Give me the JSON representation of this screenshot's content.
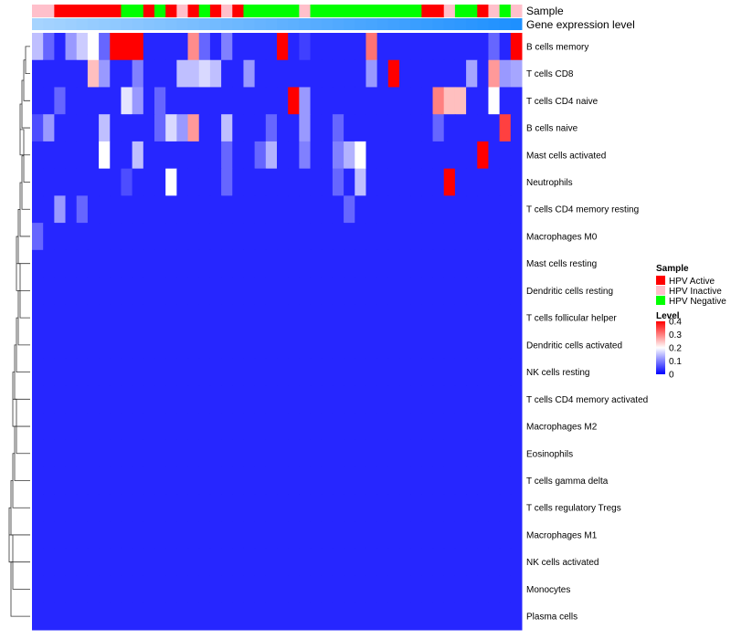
{
  "chart_data": {
    "type": "heatmap",
    "annotation_labels": [
      "Sample",
      "Gene expression level"
    ],
    "rows": [
      "B cells memory",
      "T cells CD8",
      "T cells CD4 naive",
      "B cells naive",
      "Mast cells activated",
      "Neutrophils",
      "T cells CD4 memory resting",
      "Macrophages M0",
      "Mast cells resting",
      "Dendritic cells resting",
      "T cells follicular helper",
      "Dendritic cells activated",
      "NK cells resting",
      "T cells CD4 memory activated",
      "Macrophages M2",
      "Eosinophils",
      "T cells gamma delta",
      "T cells regulatory  Tregs",
      "Macrophages M1",
      "NK cells activated",
      "Monocytes",
      "Plasma cells"
    ],
    "samples": [
      "I",
      "I",
      "A",
      "A",
      "A",
      "A",
      "A",
      "A",
      "N",
      "N",
      "A",
      "N",
      "A",
      "I",
      "A",
      "N",
      "A",
      "I",
      "A",
      "N",
      "N",
      "N",
      "N",
      "N",
      "I",
      "N",
      "N",
      "N",
      "N",
      "N",
      "N",
      "N",
      "N",
      "N",
      "N",
      "A",
      "A",
      "I",
      "N",
      "N",
      "A",
      "I",
      "N",
      "I"
    ],
    "values": [
      [
        0.15,
        0.08,
        0.03,
        0.12,
        0.16,
        0.2,
        0.08,
        0.4,
        0.4,
        0.4,
        0.03,
        0.03,
        0.03,
        0.03,
        0.29,
        0.08,
        0.03,
        0.1,
        0.03,
        0.03,
        0.03,
        0.03,
        0.4,
        0.03,
        0.05,
        0.03,
        0.03,
        0.03,
        0.03,
        0.03,
        0.31,
        0.03,
        0.03,
        0.03,
        0.03,
        0.03,
        0.03,
        0.03,
        0.03,
        0.03,
        0.03,
        0.08,
        0.03,
        0.4
      ],
      [
        0.03,
        0.03,
        0.03,
        0.03,
        0.03,
        0.25,
        0.12,
        0.03,
        0.03,
        0.1,
        0.03,
        0.03,
        0.03,
        0.15,
        0.15,
        0.17,
        0.15,
        0.03,
        0.03,
        0.12,
        0.03,
        0.03,
        0.03,
        0.03,
        0.03,
        0.03,
        0.03,
        0.03,
        0.03,
        0.03,
        0.12,
        0.03,
        0.4,
        0.03,
        0.03,
        0.03,
        0.03,
        0.03,
        0.03,
        0.13,
        0.03,
        0.28,
        0.12,
        0.13
      ],
      [
        0.03,
        0.03,
        0.08,
        0.03,
        0.03,
        0.03,
        0.03,
        0.03,
        0.18,
        0.12,
        0.03,
        0.08,
        0.03,
        0.03,
        0.03,
        0.03,
        0.03,
        0.03,
        0.03,
        0.03,
        0.03,
        0.03,
        0.03,
        0.4,
        0.12,
        0.03,
        0.03,
        0.03,
        0.03,
        0.03,
        0.03,
        0.03,
        0.03,
        0.03,
        0.03,
        0.03,
        0.3,
        0.25,
        0.25,
        0.03,
        0.03,
        0.2,
        0.03,
        0.03
      ],
      [
        0.06,
        0.12,
        0.03,
        0.03,
        0.03,
        0.03,
        0.15,
        0.03,
        0.03,
        0.03,
        0.03,
        0.08,
        0.17,
        0.12,
        0.28,
        0.03,
        0.03,
        0.15,
        0.03,
        0.03,
        0.03,
        0.08,
        0.03,
        0.03,
        0.12,
        0.03,
        0.03,
        0.08,
        0.03,
        0.03,
        0.03,
        0.03,
        0.03,
        0.03,
        0.03,
        0.03,
        0.08,
        0.03,
        0.03,
        0.03,
        0.03,
        0.03,
        0.35,
        0.03
      ],
      [
        0.03,
        0.03,
        0.03,
        0.03,
        0.03,
        0.03,
        0.2,
        0.03,
        0.03,
        0.15,
        0.03,
        0.03,
        0.03,
        0.03,
        0.03,
        0.03,
        0.03,
        0.08,
        0.03,
        0.03,
        0.08,
        0.14,
        0.03,
        0.03,
        0.1,
        0.03,
        0.03,
        0.1,
        0.14,
        0.2,
        0.03,
        0.03,
        0.03,
        0.03,
        0.03,
        0.03,
        0.03,
        0.03,
        0.03,
        0.03,
        0.4,
        0.03,
        0.03,
        0.03
      ],
      [
        0.03,
        0.03,
        0.03,
        0.03,
        0.03,
        0.03,
        0.03,
        0.03,
        0.06,
        0.03,
        0.03,
        0.03,
        0.2,
        0.03,
        0.03,
        0.03,
        0.03,
        0.08,
        0.03,
        0.03,
        0.03,
        0.03,
        0.03,
        0.03,
        0.03,
        0.03,
        0.03,
        0.08,
        0.03,
        0.15,
        0.03,
        0.03,
        0.03,
        0.03,
        0.03,
        0.03,
        0.03,
        0.4,
        0.03,
        0.03,
        0.03,
        0.03,
        0.03,
        0.03
      ],
      [
        0.03,
        0.03,
        0.12,
        0.03,
        0.08,
        0.03,
        0.03,
        0.03,
        0.03,
        0.03,
        0.03,
        0.03,
        0.03,
        0.03,
        0.03,
        0.03,
        0.03,
        0.03,
        0.03,
        0.03,
        0.03,
        0.03,
        0.03,
        0.03,
        0.03,
        0.03,
        0.03,
        0.03,
        0.08,
        0.03,
        0.03,
        0.03,
        0.03,
        0.03,
        0.03,
        0.03,
        0.03,
        0.03,
        0.03,
        0.03,
        0.03,
        0.03,
        0.03,
        0.03
      ],
      [
        0.08,
        0.03,
        0.03,
        0.03,
        0.03,
        0.03,
        0.03,
        0.03,
        0.03,
        0.03,
        0.03,
        0.03,
        0.03,
        0.03,
        0.03,
        0.03,
        0.03,
        0.03,
        0.03,
        0.03,
        0.03,
        0.03,
        0.03,
        0.03,
        0.03,
        0.03,
        0.03,
        0.03,
        0.03,
        0.03,
        0.03,
        0.03,
        0.03,
        0.03,
        0.03,
        0.03,
        0.03,
        0.03,
        0.03,
        0.03,
        0.03,
        0.03,
        0.03,
        0.03
      ],
      [
        0.03,
        0.03,
        0.03,
        0.03,
        0.03,
        0.03,
        0.03,
        0.03,
        0.03,
        0.03,
        0.03,
        0.03,
        0.03,
        0.03,
        0.03,
        0.03,
        0.03,
        0.03,
        0.03,
        0.03,
        0.03,
        0.03,
        0.03,
        0.03,
        0.03,
        0.03,
        0.03,
        0.03,
        0.03,
        0.03,
        0.03,
        0.03,
        0.03,
        0.03,
        0.03,
        0.03,
        0.03,
        0.03,
        0.03,
        0.03,
        0.03,
        0.03,
        0.03,
        0.03
      ],
      [
        0.03,
        0.03,
        0.03,
        0.03,
        0.03,
        0.03,
        0.03,
        0.03,
        0.03,
        0.03,
        0.03,
        0.03,
        0.03,
        0.03,
        0.03,
        0.03,
        0.03,
        0.03,
        0.03,
        0.03,
        0.03,
        0.03,
        0.03,
        0.03,
        0.03,
        0.03,
        0.03,
        0.03,
        0.03,
        0.03,
        0.03,
        0.03,
        0.03,
        0.03,
        0.03,
        0.03,
        0.03,
        0.03,
        0.03,
        0.03,
        0.03,
        0.03,
        0.03,
        0.03
      ],
      [
        0.03,
        0.03,
        0.03,
        0.03,
        0.03,
        0.03,
        0.03,
        0.03,
        0.03,
        0.03,
        0.03,
        0.03,
        0.03,
        0.03,
        0.03,
        0.03,
        0.03,
        0.03,
        0.03,
        0.03,
        0.03,
        0.03,
        0.03,
        0.03,
        0.03,
        0.03,
        0.03,
        0.03,
        0.03,
        0.03,
        0.03,
        0.03,
        0.03,
        0.03,
        0.03,
        0.03,
        0.03,
        0.03,
        0.03,
        0.03,
        0.03,
        0.03,
        0.03,
        0.03
      ],
      [
        0.03,
        0.03,
        0.03,
        0.03,
        0.03,
        0.03,
        0.03,
        0.03,
        0.03,
        0.03,
        0.03,
        0.03,
        0.03,
        0.03,
        0.03,
        0.03,
        0.03,
        0.03,
        0.03,
        0.03,
        0.03,
        0.03,
        0.03,
        0.03,
        0.03,
        0.03,
        0.03,
        0.03,
        0.03,
        0.03,
        0.03,
        0.03,
        0.03,
        0.03,
        0.03,
        0.03,
        0.03,
        0.03,
        0.03,
        0.03,
        0.03,
        0.03,
        0.03,
        0.03
      ],
      [
        0.03,
        0.03,
        0.03,
        0.03,
        0.03,
        0.03,
        0.03,
        0.03,
        0.03,
        0.03,
        0.03,
        0.03,
        0.03,
        0.03,
        0.03,
        0.03,
        0.03,
        0.03,
        0.03,
        0.03,
        0.03,
        0.03,
        0.03,
        0.03,
        0.03,
        0.03,
        0.03,
        0.03,
        0.03,
        0.03,
        0.03,
        0.03,
        0.03,
        0.03,
        0.03,
        0.03,
        0.03,
        0.03,
        0.03,
        0.03,
        0.03,
        0.03,
        0.03,
        0.03
      ],
      [
        0.03,
        0.03,
        0.03,
        0.03,
        0.03,
        0.03,
        0.03,
        0.03,
        0.03,
        0.03,
        0.03,
        0.03,
        0.03,
        0.03,
        0.03,
        0.03,
        0.03,
        0.03,
        0.03,
        0.03,
        0.03,
        0.03,
        0.03,
        0.03,
        0.03,
        0.03,
        0.03,
        0.03,
        0.03,
        0.03,
        0.03,
        0.03,
        0.03,
        0.03,
        0.03,
        0.03,
        0.03,
        0.03,
        0.03,
        0.03,
        0.03,
        0.03,
        0.03,
        0.03
      ],
      [
        0.03,
        0.03,
        0.03,
        0.03,
        0.03,
        0.03,
        0.03,
        0.03,
        0.03,
        0.03,
        0.03,
        0.03,
        0.03,
        0.03,
        0.03,
        0.03,
        0.03,
        0.03,
        0.03,
        0.03,
        0.03,
        0.03,
        0.03,
        0.03,
        0.03,
        0.03,
        0.03,
        0.03,
        0.03,
        0.03,
        0.03,
        0.03,
        0.03,
        0.03,
        0.03,
        0.03,
        0.03,
        0.03,
        0.03,
        0.03,
        0.03,
        0.03,
        0.03,
        0.03
      ],
      [
        0.03,
        0.03,
        0.03,
        0.03,
        0.03,
        0.03,
        0.03,
        0.03,
        0.03,
        0.03,
        0.03,
        0.03,
        0.03,
        0.03,
        0.03,
        0.03,
        0.03,
        0.03,
        0.03,
        0.03,
        0.03,
        0.03,
        0.03,
        0.03,
        0.03,
        0.03,
        0.03,
        0.03,
        0.03,
        0.03,
        0.03,
        0.03,
        0.03,
        0.03,
        0.03,
        0.03,
        0.03,
        0.03,
        0.03,
        0.03,
        0.03,
        0.03,
        0.03,
        0.03
      ],
      [
        0.03,
        0.03,
        0.03,
        0.03,
        0.03,
        0.03,
        0.03,
        0.03,
        0.03,
        0.03,
        0.03,
        0.03,
        0.03,
        0.03,
        0.03,
        0.03,
        0.03,
        0.03,
        0.03,
        0.03,
        0.03,
        0.03,
        0.03,
        0.03,
        0.03,
        0.03,
        0.03,
        0.03,
        0.03,
        0.03,
        0.03,
        0.03,
        0.03,
        0.03,
        0.03,
        0.03,
        0.03,
        0.03,
        0.03,
        0.03,
        0.03,
        0.03,
        0.03,
        0.03
      ],
      [
        0.03,
        0.03,
        0.03,
        0.03,
        0.03,
        0.03,
        0.03,
        0.03,
        0.03,
        0.03,
        0.03,
        0.03,
        0.03,
        0.03,
        0.03,
        0.03,
        0.03,
        0.03,
        0.03,
        0.03,
        0.03,
        0.03,
        0.03,
        0.03,
        0.03,
        0.03,
        0.03,
        0.03,
        0.03,
        0.03,
        0.03,
        0.03,
        0.03,
        0.03,
        0.03,
        0.03,
        0.03,
        0.03,
        0.03,
        0.03,
        0.03,
        0.03,
        0.03,
        0.03
      ],
      [
        0.03,
        0.03,
        0.03,
        0.03,
        0.03,
        0.03,
        0.03,
        0.03,
        0.03,
        0.03,
        0.03,
        0.03,
        0.03,
        0.03,
        0.03,
        0.03,
        0.03,
        0.03,
        0.03,
        0.03,
        0.03,
        0.03,
        0.03,
        0.03,
        0.03,
        0.03,
        0.03,
        0.03,
        0.03,
        0.03,
        0.03,
        0.03,
        0.03,
        0.03,
        0.03,
        0.03,
        0.03,
        0.03,
        0.03,
        0.03,
        0.03,
        0.03,
        0.03,
        0.03
      ],
      [
        0.03,
        0.03,
        0.03,
        0.03,
        0.03,
        0.03,
        0.03,
        0.03,
        0.03,
        0.03,
        0.03,
        0.03,
        0.03,
        0.03,
        0.03,
        0.03,
        0.03,
        0.03,
        0.03,
        0.03,
        0.03,
        0.03,
        0.03,
        0.03,
        0.03,
        0.03,
        0.03,
        0.03,
        0.03,
        0.03,
        0.03,
        0.03,
        0.03,
        0.03,
        0.03,
        0.03,
        0.03,
        0.03,
        0.03,
        0.03,
        0.03,
        0.03,
        0.03,
        0.03
      ],
      [
        0.03,
        0.03,
        0.03,
        0.03,
        0.03,
        0.03,
        0.03,
        0.03,
        0.03,
        0.03,
        0.03,
        0.03,
        0.03,
        0.03,
        0.03,
        0.03,
        0.03,
        0.03,
        0.03,
        0.03,
        0.03,
        0.03,
        0.03,
        0.03,
        0.03,
        0.03,
        0.03,
        0.03,
        0.03,
        0.03,
        0.03,
        0.03,
        0.03,
        0.03,
        0.03,
        0.03,
        0.03,
        0.03,
        0.03,
        0.03,
        0.03,
        0.03,
        0.03,
        0.03
      ],
      [
        0.03,
        0.03,
        0.03,
        0.03,
        0.03,
        0.03,
        0.03,
        0.03,
        0.03,
        0.03,
        0.03,
        0.03,
        0.03,
        0.03,
        0.03,
        0.03,
        0.03,
        0.03,
        0.03,
        0.03,
        0.03,
        0.03,
        0.03,
        0.03,
        0.03,
        0.03,
        0.03,
        0.03,
        0.03,
        0.03,
        0.03,
        0.03,
        0.03,
        0.03,
        0.03,
        0.03,
        0.03,
        0.03,
        0.03,
        0.03,
        0.03,
        0.03,
        0.03,
        0.03
      ]
    ],
    "value_range": [
      0,
      0.4
    ],
    "colorscale": {
      "low": "#0000ff",
      "mid": "#ffffff",
      "high": "#ff0000"
    },
    "legend": {
      "position": "right",
      "sample_title": "Sample",
      "sample_items": [
        {
          "key": "A",
          "label": "HPV Active",
          "color": "#ff0000"
        },
        {
          "key": "I",
          "label": "HPV Inactive",
          "color": "#ffc0cb"
        },
        {
          "key": "N",
          "label": "HPV Negative",
          "color": "#00ff00"
        }
      ],
      "level_title": "Level",
      "level_ticks": [
        {
          "value": 0.4,
          "label": "0.4"
        },
        {
          "value": 0.3,
          "label": "0.3"
        },
        {
          "value": 0.2,
          "label": "0.2"
        },
        {
          "value": 0.1,
          "label": "0.1"
        },
        {
          "value": 0,
          "label": "0"
        }
      ]
    },
    "expression_bar_colors": {
      "start": "#a6d4ff",
      "end": "#1e90ff"
    }
  }
}
